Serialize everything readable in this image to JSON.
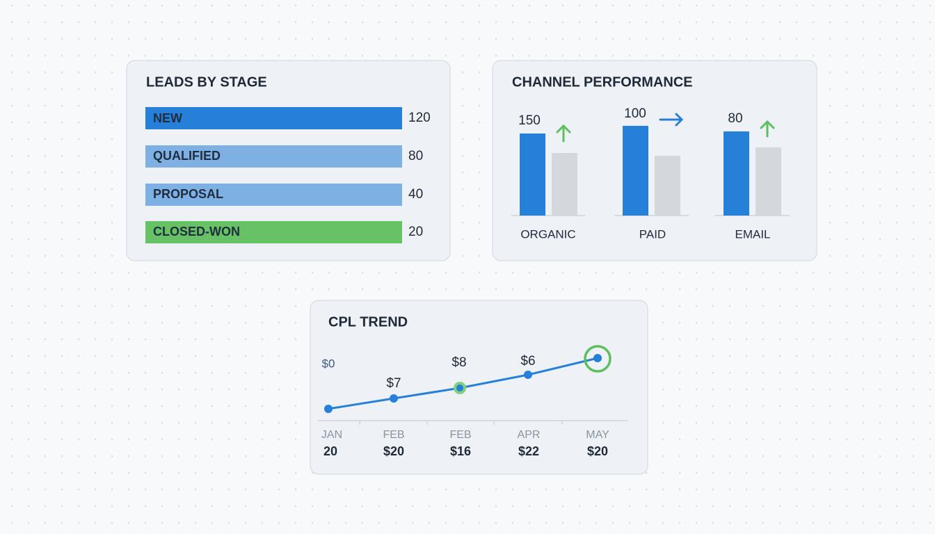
{
  "leads_by_stage": {
    "title": "LEADS BY STAGE",
    "rows": [
      {
        "label": "NEW",
        "value": "120"
      },
      {
        "label": "QUALIFIED",
        "value": "80"
      },
      {
        "label": "PROPOSAL",
        "value": "40"
      },
      {
        "label": "CLOSED-WON",
        "value": "20"
      }
    ]
  },
  "channel_performance": {
    "title": "CHANNEL PERFORMANCE",
    "channels": [
      {
        "label": "ORGANIC",
        "value": "150"
      },
      {
        "label": "PAID",
        "value": "100"
      },
      {
        "label": "EMAIL",
        "value": "80"
      }
    ]
  },
  "cpl_trend": {
    "title": "CPL TREND",
    "point_labels": [
      "$0",
      "$7",
      "$8",
      "$6"
    ],
    "months": [
      {
        "month": "JAN",
        "value": "20"
      },
      {
        "month": "FEB",
        "value": "$20"
      },
      {
        "month": "FEB",
        "value": "$16"
      },
      {
        "month": "APR",
        "value": "$22"
      },
      {
        "month": "MAY",
        "value": "$20"
      }
    ]
  }
}
